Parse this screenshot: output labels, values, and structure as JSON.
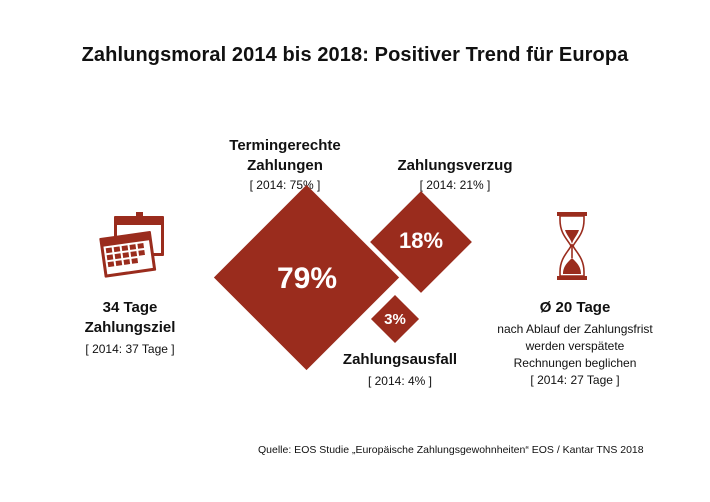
{
  "title": "Zahlungsmoral 2014 bis 2018: Positiver Trend für Europa",
  "left": {
    "line1": "34 Tage",
    "line2": "Zahlungsziel",
    "sub": "[ 2014: 37 Tage ]",
    "icon": "calendar-icon"
  },
  "right": {
    "line1": "Ø 20 Tage",
    "desc1": "nach Ablauf der Zahlungsfrist",
    "desc2": "werden verspätete",
    "desc3": "Rechnungen beglichen",
    "sub": "[ 2014: 27 Tage ]",
    "icon": "hourglass-icon"
  },
  "timely": {
    "line1": "Termingerechte",
    "line2": "Zahlungen",
    "sub": "[ 2014: 75% ]"
  },
  "delay": {
    "line1": "Zahlungsverzug",
    "sub": "[ 2014: 21% ]"
  },
  "default": {
    "line1": "Zahlungsausfall",
    "sub": "[ 2014: 4% ]"
  },
  "source": "Quelle: EOS Studie „Europäische Zahlungsgewohnheiten“ EOS / Kantar TNS 2018",
  "colors": {
    "accent": "#9a2c1d"
  },
  "chart_data": {
    "type": "bar",
    "categories": [
      "Termingerechte Zahlungen",
      "Zahlungsverzug",
      "Zahlungsausfall"
    ],
    "values": [
      79,
      18,
      3
    ],
    "value_labels": [
      "79%",
      "18%",
      "3%"
    ],
    "values_2014": [
      75,
      21,
      4
    ]
  }
}
